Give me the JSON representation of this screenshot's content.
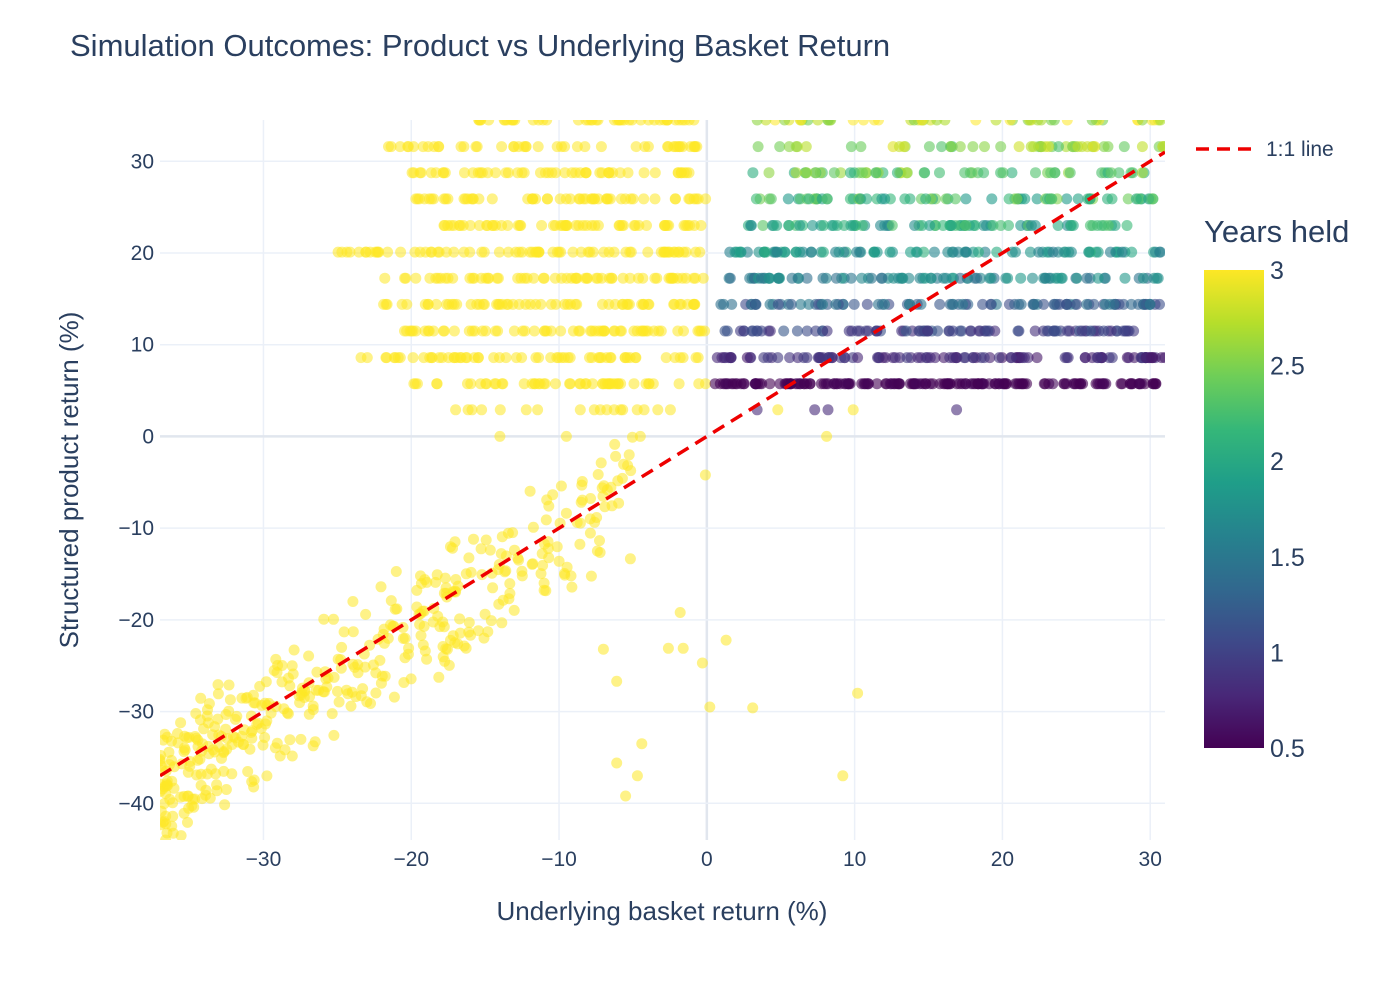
{
  "chart_data": {
    "type": "scatter",
    "title": "Simulation Outcomes: Product vs Underlying Basket Return",
    "xlabel": "Underlying basket return (%)",
    "ylabel": "Structured product return (%)",
    "xlim": [
      -37,
      31
    ],
    "ylim": [
      -44,
      34.5
    ],
    "x_ticks": [
      -30,
      -20,
      -10,
      0,
      10,
      20,
      30
    ],
    "y_ticks": [
      -40,
      -30,
      -20,
      -10,
      0,
      10,
      20,
      30
    ],
    "grid": true,
    "colorscale": "Viridis",
    "colorbar": {
      "title": "Years held",
      "range": [
        0.5,
        3
      ],
      "ticks": [
        0.5,
        1,
        1.5,
        2,
        2.5,
        3
      ]
    },
    "reference_line": {
      "name": "1:1 line",
      "style": "dashed",
      "color": "#ee0000",
      "points": [
        [
          -37,
          -37
        ],
        [
          31,
          31
        ]
      ]
    },
    "legend": {
      "placement": "top-right",
      "entries": [
        "1:1 line"
      ]
    },
    "bands": [
      {
        "y": 5.75,
        "years": 0.5,
        "x_range": [
          0.5,
          31
        ],
        "count": 160,
        "jitter": 0.05
      },
      {
        "y": 8.6,
        "years": 0.8,
        "x_range": [
          0.5,
          31
        ],
        "count": 110,
        "jitter": 0.15
      },
      {
        "y": 11.5,
        "years": 1.0,
        "x_range": [
          0.5,
          29
        ],
        "count": 90,
        "jitter": 0.2
      },
      {
        "y": 14.4,
        "years": 1.3,
        "x_range": [
          0.7,
          31
        ],
        "count": 90,
        "jitter": 0.25
      },
      {
        "y": 17.25,
        "years": 1.6,
        "x_range": [
          1.5,
          31
        ],
        "count": 85,
        "jitter": 0.25
      },
      {
        "y": 20.1,
        "years": 1.8,
        "x_range": [
          1.5,
          31
        ],
        "count": 85,
        "jitter": 0.3
      },
      {
        "y": 23.0,
        "years": 2.0,
        "x_range": [
          2.5,
          29
        ],
        "count": 75,
        "jitter": 0.35
      },
      {
        "y": 25.9,
        "years": 2.2,
        "x_range": [
          2.5,
          31
        ],
        "count": 70,
        "jitter": 0.35
      },
      {
        "y": 28.75,
        "years": 2.4,
        "x_range": [
          3.0,
          30
        ],
        "count": 55,
        "jitter": 0.35
      },
      {
        "y": 31.6,
        "years": 2.6,
        "x_range": [
          3.0,
          31
        ],
        "count": 50,
        "jitter": 0.35
      },
      {
        "y": 34.5,
        "years": 2.8,
        "x_range": [
          3.0,
          31
        ],
        "count": 50,
        "jitter": 0.35
      },
      {
        "y": 2.9,
        "years": 3.0,
        "x_range": [
          -19,
          -1
        ],
        "count": 18,
        "jitter": 0
      },
      {
        "y": 5.75,
        "years": 3.0,
        "x_range": [
          -20,
          0
        ],
        "count": 50,
        "jitter": 0
      },
      {
        "y": 8.6,
        "years": 3.0,
        "x_range": [
          -24,
          0
        ],
        "count": 60,
        "jitter": 0
      },
      {
        "y": 11.5,
        "years": 3.0,
        "x_range": [
          -21,
          0
        ],
        "count": 60,
        "jitter": 0
      },
      {
        "y": 14.4,
        "years": 3.0,
        "x_range": [
          -22,
          0
        ],
        "count": 60,
        "jitter": 0
      },
      {
        "y": 17.25,
        "years": 3.0,
        "x_range": [
          -22,
          0
        ],
        "count": 60,
        "jitter": 0
      },
      {
        "y": 20.1,
        "years": 3.0,
        "x_range": [
          -25,
          0
        ],
        "count": 70,
        "jitter": 0
      },
      {
        "y": 23.0,
        "years": 3.0,
        "x_range": [
          -18,
          0
        ],
        "count": 55,
        "jitter": 0
      },
      {
        "y": 25.9,
        "years": 3.0,
        "x_range": [
          -20,
          0
        ],
        "count": 55,
        "jitter": 0
      },
      {
        "y": 28.75,
        "years": 3.0,
        "x_range": [
          -20,
          0
        ],
        "count": 50,
        "jitter": 0
      },
      {
        "y": 31.6,
        "years": 3.0,
        "x_range": [
          -22,
          0
        ],
        "count": 45,
        "jitter": 0
      },
      {
        "y": 34.5,
        "years": 3.0,
        "x_range": [
          -16,
          0
        ],
        "count": 45,
        "jitter": 0
      }
    ],
    "cloud": {
      "years": 3.0,
      "count": 420,
      "x_range": [
        -37,
        -5
      ],
      "y_offset_range": [
        -9,
        7
      ],
      "y_min": -44
    },
    "isolated_points": [
      {
        "x": 3.4,
        "y": 2.9,
        "years": 0.8
      },
      {
        "x": 7.3,
        "y": 2.9,
        "years": 0.8
      },
      {
        "x": 8.2,
        "y": 2.9,
        "years": 0.8
      },
      {
        "x": 16.9,
        "y": 2.9,
        "years": 0.8
      },
      {
        "x": 4.8,
        "y": 2.9,
        "years": 3.0
      },
      {
        "x": 9.9,
        "y": 2.9,
        "years": 3.0
      },
      {
        "x": 8.1,
        "y": 0.0,
        "years": 3.0
      },
      {
        "x": -4.5,
        "y": 0.0,
        "years": 3.0
      },
      {
        "x": -9.5,
        "y": 0.0,
        "years": 3.0
      },
      {
        "x": -14.0,
        "y": 0.0,
        "years": 3.0
      },
      {
        "x": -0.1,
        "y": -4.2,
        "years": 3.0
      },
      {
        "x": 1.3,
        "y": -22.2,
        "years": 3.0
      },
      {
        "x": 10.2,
        "y": -28.0,
        "years": 3.0
      },
      {
        "x": 3.1,
        "y": -29.6,
        "years": 3.0
      },
      {
        "x": 9.2,
        "y": -37.0,
        "years": 3.0
      },
      {
        "x": 0.2,
        "y": -29.5,
        "years": 3.0
      },
      {
        "x": -0.3,
        "y": -24.7,
        "years": 3.0
      },
      {
        "x": -1.6,
        "y": -23.1,
        "years": 3.0
      },
      {
        "x": -2.6,
        "y": -23.1,
        "years": 3.0
      },
      {
        "x": -1.8,
        "y": -19.2,
        "years": 3.0
      },
      {
        "x": -4.4,
        "y": -33.5,
        "years": 3.0
      },
      {
        "x": -4.7,
        "y": -37.0,
        "years": 3.0
      },
      {
        "x": -5.5,
        "y": -39.2,
        "years": 3.0
      },
      {
        "x": -6.1,
        "y": -35.6,
        "years": 3.0
      },
      {
        "x": -6.1,
        "y": -26.7,
        "years": 3.0
      },
      {
        "x": -7.0,
        "y": -23.2,
        "years": 3.0
      }
    ]
  }
}
